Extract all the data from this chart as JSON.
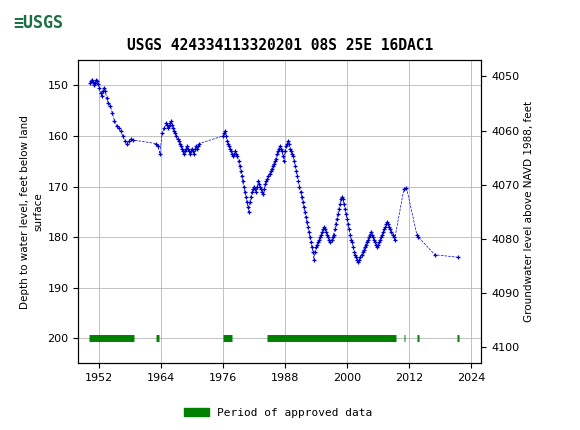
{
  "title": "USGS 424334113320201 08S 25E 16DAC1",
  "ylabel_left": "Depth to water level, feet below land\nsurface",
  "ylabel_right": "Groundwater level above NAVD 1988, feet",
  "ylim_left": [
    145,
    205
  ],
  "ylim_right": [
    4047,
    4103
  ],
  "xlim": [
    1948,
    2026
  ],
  "yticks_left": [
    150,
    160,
    170,
    180,
    190,
    200
  ],
  "yticks_right": [
    4050,
    4060,
    4070,
    4080,
    4090,
    4100
  ],
  "xticks": [
    1952,
    1964,
    1976,
    1988,
    2000,
    2012,
    2024
  ],
  "header_color": "#1a7040",
  "dot_color": "#0000cc",
  "approved_color": "#008000",
  "background_color": "#ffffff",
  "plot_bg_color": "#ffffff",
  "grid_color": "#aaaaaa",
  "data_x": [
    1950.3,
    1950.5,
    1950.7,
    1950.9,
    1951.1,
    1951.3,
    1951.5,
    1951.7,
    1951.9,
    1952.1,
    1952.3,
    1952.5,
    1952.7,
    1952.9,
    1953.2,
    1953.5,
    1953.8,
    1954.2,
    1954.6,
    1955.0,
    1955.4,
    1955.8,
    1956.2,
    1956.6,
    1957.0,
    1957.4,
    1957.8,
    1958.2,
    1958.6,
    1963.0,
    1963.4,
    1963.8,
    1964.2,
    1964.6,
    1965.0,
    1965.2,
    1965.4,
    1965.6,
    1965.8,
    1966.0,
    1966.2,
    1966.4,
    1966.6,
    1966.8,
    1967.0,
    1967.2,
    1967.4,
    1967.6,
    1967.8,
    1968.0,
    1968.2,
    1968.4,
    1968.6,
    1968.8,
    1969.0,
    1969.2,
    1969.4,
    1969.6,
    1969.8,
    1970.0,
    1970.2,
    1970.4,
    1970.6,
    1970.8,
    1971.0,
    1971.2,
    1971.4,
    1976.0,
    1976.2,
    1976.4,
    1976.6,
    1976.8,
    1977.0,
    1977.2,
    1977.4,
    1977.6,
    1977.8,
    1978.0,
    1978.2,
    1978.4,
    1978.6,
    1978.8,
    1979.0,
    1979.2,
    1979.4,
    1979.6,
    1979.8,
    1980.0,
    1980.2,
    1980.4,
    1980.6,
    1980.8,
    1981.0,
    1981.2,
    1981.4,
    1981.6,
    1981.8,
    1982.0,
    1982.2,
    1982.4,
    1982.6,
    1982.8,
    1983.0,
    1983.2,
    1983.4,
    1983.6,
    1983.8,
    1984.0,
    1984.2,
    1984.4,
    1984.6,
    1984.8,
    1985.0,
    1985.2,
    1985.4,
    1985.6,
    1985.8,
    1986.0,
    1986.2,
    1986.4,
    1986.6,
    1986.8,
    1987.0,
    1987.2,
    1987.4,
    1987.6,
    1987.8,
    1988.0,
    1988.2,
    1988.4,
    1988.6,
    1988.8,
    1989.0,
    1989.2,
    1989.4,
    1989.6,
    1989.8,
    1990.0,
    1990.2,
    1990.4,
    1990.6,
    1990.8,
    1991.0,
    1991.2,
    1991.4,
    1991.6,
    1991.8,
    1992.0,
    1992.2,
    1992.4,
    1992.6,
    1992.8,
    1993.0,
    1993.2,
    1993.4,
    1993.6,
    1993.8,
    1994.0,
    1994.2,
    1994.4,
    1994.6,
    1994.8,
    1995.0,
    1995.2,
    1995.4,
    1995.6,
    1995.8,
    1996.0,
    1996.2,
    1996.4,
    1996.6,
    1996.8,
    1997.0,
    1997.2,
    1997.4,
    1997.6,
    1997.8,
    1998.0,
    1998.2,
    1998.4,
    1998.6,
    1998.8,
    1999.0,
    1999.2,
    1999.4,
    1999.6,
    1999.8,
    2000.0,
    2000.2,
    2000.4,
    2000.6,
    2000.8,
    2001.0,
    2001.2,
    2001.4,
    2001.6,
    2001.8,
    2002.0,
    2002.2,
    2002.4,
    2002.6,
    2002.8,
    2003.0,
    2003.2,
    2003.4,
    2003.6,
    2003.8,
    2004.0,
    2004.2,
    2004.4,
    2004.6,
    2004.8,
    2005.0,
    2005.2,
    2005.4,
    2005.6,
    2005.8,
    2006.0,
    2006.2,
    2006.4,
    2006.6,
    2006.8,
    2007.0,
    2007.2,
    2007.4,
    2007.6,
    2007.8,
    2008.0,
    2008.2,
    2008.4,
    2008.6,
    2008.8,
    2009.0,
    2009.2,
    2011.0,
    2011.5,
    2013.5,
    2013.8,
    2017.0,
    2021.5
  ],
  "data_y": [
    149.5,
    149.2,
    149.0,
    149.3,
    150.0,
    149.5,
    149.0,
    149.2,
    149.8,
    150.5,
    151.5,
    152.0,
    151.0,
    150.5,
    151.0,
    152.5,
    153.5,
    154.0,
    155.5,
    157.0,
    158.0,
    158.5,
    159.0,
    160.0,
    161.0,
    161.5,
    161.0,
    160.5,
    160.8,
    161.5,
    162.0,
    163.5,
    159.5,
    158.5,
    157.5,
    157.8,
    158.5,
    158.0,
    157.5,
    157.0,
    157.8,
    158.5,
    159.0,
    159.5,
    160.0,
    160.5,
    161.0,
    161.5,
    162.0,
    162.5,
    163.0,
    163.5,
    163.0,
    162.5,
    162.0,
    162.5,
    163.0,
    163.5,
    163.0,
    162.5,
    163.0,
    163.5,
    162.5,
    162.0,
    162.5,
    162.0,
    161.5,
    160.0,
    159.5,
    159.0,
    160.0,
    161.0,
    161.5,
    162.0,
    162.5,
    163.0,
    163.5,
    164.0,
    163.5,
    163.0,
    163.5,
    164.0,
    165.0,
    166.0,
    167.0,
    168.0,
    169.0,
    170.0,
    171.0,
    172.0,
    173.0,
    174.0,
    175.0,
    173.0,
    172.0,
    171.0,
    170.5,
    170.0,
    170.5,
    171.0,
    170.0,
    169.0,
    169.5,
    170.0,
    170.5,
    171.0,
    171.5,
    170.5,
    169.5,
    169.0,
    168.5,
    168.0,
    167.5,
    167.0,
    166.5,
    166.0,
    165.5,
    165.0,
    164.5,
    163.5,
    163.0,
    162.5,
    162.0,
    162.5,
    163.0,
    164.0,
    165.0,
    163.0,
    162.0,
    161.5,
    161.0,
    161.5,
    162.5,
    163.0,
    163.5,
    164.0,
    165.0,
    166.0,
    167.0,
    168.0,
    169.0,
    170.0,
    171.0,
    172.0,
    173.0,
    174.0,
    175.0,
    176.0,
    177.0,
    178.0,
    179.0,
    180.0,
    181.0,
    182.0,
    183.0,
    184.5,
    183.0,
    182.0,
    181.5,
    181.0,
    180.5,
    180.0,
    179.5,
    179.0,
    178.5,
    178.0,
    178.5,
    179.0,
    179.5,
    180.0,
    180.5,
    181.0,
    180.5,
    180.0,
    179.5,
    178.5,
    177.5,
    176.5,
    175.5,
    174.5,
    173.5,
    172.5,
    172.0,
    172.5,
    173.5,
    174.5,
    175.5,
    176.5,
    177.5,
    178.5,
    179.5,
    180.5,
    181.0,
    182.0,
    183.0,
    183.5,
    184.0,
    184.5,
    185.0,
    184.5,
    184.0,
    183.5,
    183.0,
    182.5,
    182.0,
    181.5,
    181.0,
    180.5,
    180.0,
    179.5,
    179.0,
    179.5,
    180.0,
    180.5,
    181.0,
    181.5,
    182.0,
    181.5,
    181.0,
    180.5,
    180.0,
    179.5,
    179.0,
    178.5,
    178.0,
    177.5,
    177.0,
    177.5,
    178.0,
    178.5,
    179.0,
    179.5,
    180.0,
    180.5,
    170.5,
    170.2,
    179.5,
    180.0,
    183.5,
    184.0
  ],
  "approved_segments": [
    [
      1950.0,
      1958.8
    ],
    [
      1963.0,
      1963.6
    ],
    [
      1976.0,
      1977.7
    ],
    [
      1984.5,
      2009.5
    ],
    [
      2011.0,
      2011.3
    ],
    [
      2013.5,
      2013.9
    ],
    [
      2021.3,
      2021.7
    ]
  ]
}
